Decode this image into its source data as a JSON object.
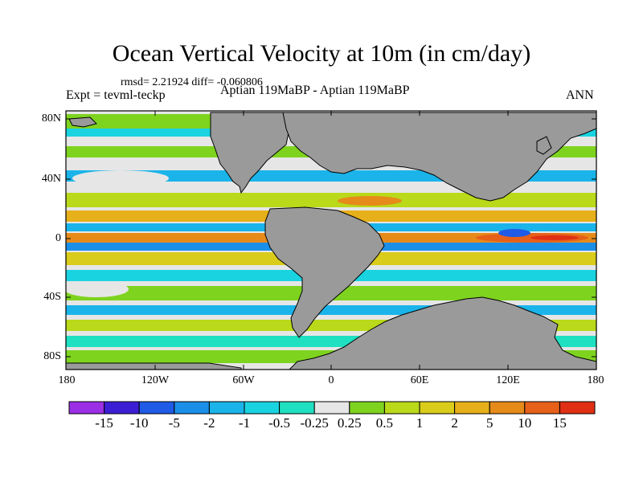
{
  "title": "Ocean Vertical Velocity at 10m (in cm/day)",
  "stats_line": "rmsd= 2.21924 diff= -0.060806",
  "experiment": "Expt = tevml-teckp",
  "case_label": "Aptian   119MaBP - Aptian   119MaBP",
  "season": "ANN",
  "lat_ticks": [
    "80N",
    "40N",
    "0",
    "40S",
    "80S"
  ],
  "lon_ticks": [
    "180",
    "120W",
    "60W",
    "0",
    "60E",
    "120E",
    "180"
  ],
  "colorbar": {
    "labels": [
      "-15",
      "-10",
      "-5",
      "-2",
      "-1",
      "-0.5",
      "-0.25",
      "0.25",
      "0.5",
      "1",
      "2",
      "5",
      "10",
      "15"
    ],
    "colors": [
      "#9b2fe6",
      "#3c1fd4",
      "#1f5be6",
      "#1b8fe8",
      "#1ab4ea",
      "#1ad3e0",
      "#1fe0c0",
      "#e6e6e6",
      "#7ed31f",
      "#b9d91a",
      "#d9cc1a",
      "#e6b01a",
      "#e68a1a",
      "#e6601a",
      "#e02f14"
    ]
  },
  "colors": {
    "land": "#9a9a9a",
    "frame": "#000000",
    "zero_band": "#e6e6e6"
  }
}
